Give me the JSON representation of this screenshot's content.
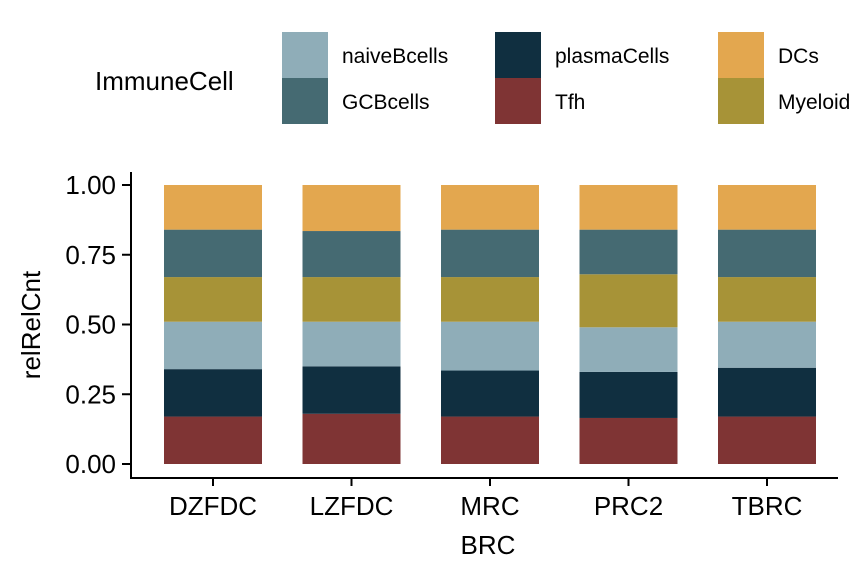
{
  "chart_data": {
    "type": "bar",
    "stacked": true,
    "title": "",
    "xlabel": "BRC",
    "ylabel": "relRelCnt",
    "ylim": [
      0,
      1
    ],
    "yticks": [
      "0.00",
      "0.25",
      "0.50",
      "0.75",
      "1.00"
    ],
    "ytick_values": [
      0,
      0.25,
      0.5,
      0.75,
      1.0
    ],
    "categories": [
      "DZFDC",
      "LZFDC",
      "MRC",
      "PRC2",
      "TBRC"
    ],
    "legend": {
      "title": "ImmuneCell",
      "position": "top",
      "entries": [
        "naiveBcells",
        "GCBcells",
        "plasmaCells",
        "Tfh",
        "DCs",
        "Myeloid"
      ]
    },
    "series": [
      {
        "name": "Tfh",
        "color": "#7f3434",
        "values": [
          0.17,
          0.18,
          0.17,
          0.165,
          0.17
        ]
      },
      {
        "name": "plasmaCells",
        "color": "#102f40",
        "values": [
          0.17,
          0.17,
          0.165,
          0.165,
          0.175
        ]
      },
      {
        "name": "naiveBcells",
        "color": "#8fadb8",
        "values": [
          0.17,
          0.16,
          0.175,
          0.16,
          0.165
        ]
      },
      {
        "name": "Myeloid",
        "color": "#a79337",
        "values": [
          0.16,
          0.16,
          0.16,
          0.19,
          0.16
        ]
      },
      {
        "name": "GCBcells",
        "color": "#456a72",
        "values": [
          0.17,
          0.165,
          0.17,
          0.16,
          0.17
        ]
      },
      {
        "name": "DCs",
        "color": "#e3a74f",
        "values": [
          0.16,
          0.165,
          0.16,
          0.16,
          0.16
        ]
      }
    ]
  }
}
